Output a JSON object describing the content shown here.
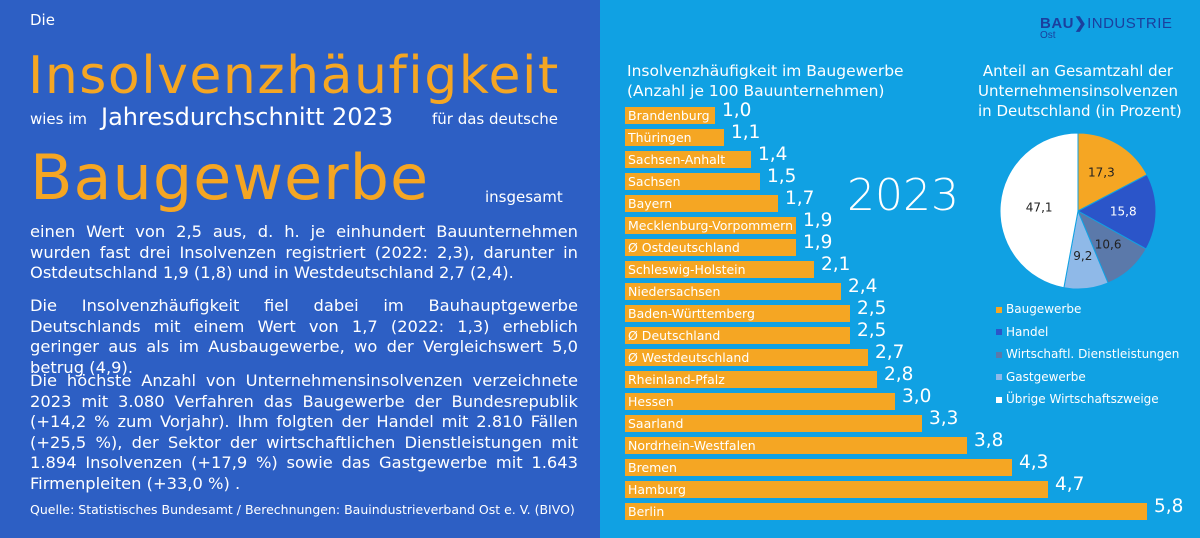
{
  "left": {
    "line1": "Die",
    "headline1": "Insolvenzhäufigkeit",
    "line2_pre": "wies im",
    "line2_mid": "Jahresdurchschnitt 2023",
    "line2_post": "für das deutsche",
    "headline2": "Baugewerbe",
    "headline2_post": "insgesamt",
    "paragraph1": "einen Wert von 2,5 aus, d. h. je einhundert Bauunternehmen wurden fast drei Insolvenzen registriert (2022: 2,3), darunter in Ostdeutschland 1,9 (1,8) und in Westdeutschland 2,7 (2,4).",
    "paragraph2": "Die Insolvenzhäufigkeit fiel dabei im Bauhauptgewerbe Deutschlands mit einem Wert von 1,7 (2022: 1,3) erheblich geringer aus als im Ausbaugewerbe, wo der Vergleichswert 5,0 betrug (4,9).",
    "paragraph3": "Die höchste Anzahl von Unternehmensinsolvenzen verzeichnete 2023 mit 3.080 Verfahren das Baugewerbe der Bundesrepublik (+14,2 % zum Vorjahr). Ihm folgten der Handel mit 2.810 Fällen (+25,5 %), der Sektor der wirtschaftlichen Dienstleistungen mit 1.894 Insolvenzen (+17,9 %) sowie das Gastgewerbe mit 1.643 Firmenpleiten (+33,0 %) .",
    "source": "Quelle: Statistisches Bundesamt / Berechnungen: Bauindustrieverband Ost e. V. (BIVO)"
  },
  "logo": {
    "bold": "BAU",
    "rest": "INDUSTRIE",
    "sub": "Ost"
  },
  "year_label": "2023",
  "colors": {
    "left_bg": "#2d5fc4",
    "right_bg": "#10a1e3",
    "accent": "#f5a623",
    "handel": "#2b55c9",
    "dienst": "#5b79aa",
    "gast": "#8fb9e8",
    "uebrige": "#ffffff"
  },
  "chart_data": [
    {
      "type": "bar",
      "orientation": "horizontal",
      "title_line1": "Insolvenzhäufigkeit im Baugewerbe",
      "title_line2": "(Anzahl je 100 Bauunternehmen)",
      "categories": [
        "Brandenburg",
        "Thüringen",
        "Sachsen-Anhalt",
        "Sachsen",
        "Bayern",
        "Mecklenburg-Vorpommern",
        "Ø Ostdeutschland",
        "Schleswig-Holstein",
        "Niedersachsen",
        "Baden-Württemberg",
        "Ø Deutschland",
        "Ø Westdeutschland",
        "Rheinland-Pfalz",
        "Hessen",
        "Saarland",
        "Nordrhein-Westfalen",
        "Bremen",
        "Hamburg",
        "Berlin"
      ],
      "values": [
        1.0,
        1.1,
        1.4,
        1.5,
        1.7,
        1.9,
        1.9,
        2.1,
        2.4,
        2.5,
        2.5,
        2.7,
        2.8,
        3.0,
        3.3,
        3.8,
        4.3,
        4.7,
        5.8
      ],
      "value_labels": [
        "1,0",
        "1,1",
        "1,4",
        "1,5",
        "1,7",
        "1,9",
        "1,9",
        "2,1",
        "2,4",
        "2,5",
        "2,5",
        "2,7",
        "2,8",
        "3,0",
        "3,3",
        "3,8",
        "4,3",
        "4,7",
        "5,8"
      ]
    },
    {
      "type": "pie",
      "title_line1": "Anteil an Gesamtzahl der",
      "title_line2": "Unternehmensinsolvenzen",
      "title_line3": "in Deutschland (in Prozent)",
      "categories": [
        "Baugewerbe",
        "Handel",
        "Wirtschaftl. Dienstleistungen",
        "Gastgewerbe",
        "Übrige Wirtschaftszweige"
      ],
      "values": [
        17.3,
        15.8,
        10.6,
        9.2,
        47.1
      ],
      "value_labels": [
        "17,3",
        "15,8",
        "10,6",
        "9,2",
        "47,1"
      ]
    }
  ]
}
